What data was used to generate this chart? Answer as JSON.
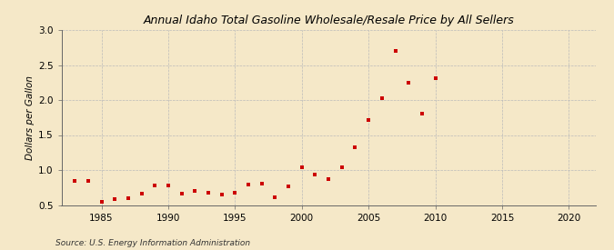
{
  "title": "Annual Idaho Total Gasoline Wholesale/Resale Price by All Sellers",
  "ylabel": "Dollars per Gallon",
  "source": "Source: U.S. Energy Information Administration",
  "background_color": "#f5e8c8",
  "marker_color": "#cc0000",
  "years": [
    1983,
    1984,
    1985,
    1986,
    1987,
    1988,
    1989,
    1990,
    1991,
    1992,
    1993,
    1994,
    1995,
    1996,
    1997,
    1998,
    1999,
    2000,
    2001,
    2002,
    2003,
    2004,
    2005,
    2006,
    2007,
    2008,
    2009,
    2010
  ],
  "values": [
    0.85,
    0.84,
    0.54,
    0.59,
    0.6,
    0.66,
    0.78,
    0.78,
    0.66,
    0.7,
    0.67,
    0.65,
    0.67,
    0.79,
    0.8,
    0.61,
    0.77,
    1.04,
    0.94,
    0.87,
    1.04,
    1.33,
    1.71,
    2.02,
    2.7,
    2.25,
    1.8,
    2.31
  ],
  "xlim": [
    1982,
    2022
  ],
  "ylim": [
    0.5,
    3.0
  ],
  "xticks": [
    1985,
    1990,
    1995,
    2000,
    2005,
    2010,
    2015,
    2020
  ],
  "yticks": [
    0.5,
    1.0,
    1.5,
    2.0,
    2.5,
    3.0
  ],
  "title_fontsize": 9,
  "axis_fontsize": 7.5,
  "source_fontsize": 6.5,
  "marker_size": 8,
  "grid_color": "#bbbbbb",
  "grid_linewidth": 0.5,
  "spine_color": "#666666"
}
